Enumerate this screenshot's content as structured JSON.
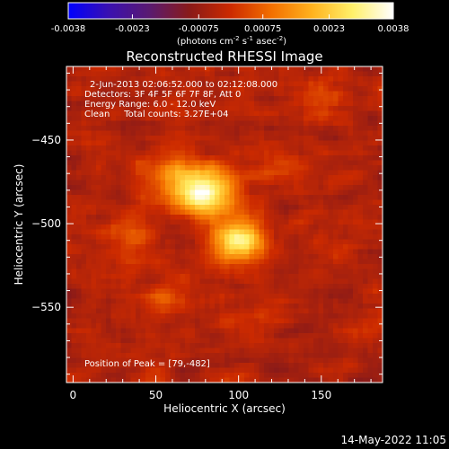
{
  "chart_data": {
    "type": "heatmap",
    "title": "Reconstructed RHESSI Image",
    "xlabel": "Heliocentric X (arcsec)",
    "ylabel": "Heliocentric Y (arcsec)",
    "xlim": [
      -4,
      187
    ],
    "ylim": [
      -595,
      -406
    ],
    "xticks": [
      0,
      50,
      100,
      150
    ],
    "yticks": [
      -450,
      -500,
      -550
    ],
    "annotations": [
      "2-Jun-2013 02:06:52.000 to 02:12:08.000",
      "Detectors: 3F 4F 5F 6F 7F 8F, Att 0",
      "Energy Range: 6.0 - 12.0 keV",
      "Clean     Total counts: 3.27E+04"
    ],
    "peak_text": "Position of Peak = [79,-482]",
    "peak_position": [
      79,
      -482
    ],
    "colorbar": {
      "range": [
        -0.0038,
        0.0038
      ],
      "ticks": [
        "-0.0038",
        "-0.0023",
        "-0.00075",
        "0.00075",
        "0.0023",
        "0.0038"
      ],
      "units_label": "(photons cm-2 s-1 asec-2)",
      "colormap": [
        "#0000ff",
        "#3a10b0",
        "#5a1a70",
        "#8a1a18",
        "#cc2a00",
        "#f36f00",
        "#ffb21e",
        "#fff06a",
        "#ffffff"
      ]
    },
    "sources": [
      {
        "x": 80,
        "y": -482,
        "amplitude": 0.0038,
        "sigma_x": 13,
        "sigma_y": 10
      },
      {
        "x": 100,
        "y": -510,
        "amplitude": 0.0033,
        "sigma_x": 11,
        "sigma_y": 9
      },
      {
        "x": 60,
        "y": -470,
        "amplitude": 0.0016,
        "sigma_x": 12,
        "sigma_y": 9
      },
      {
        "x": 38,
        "y": -505,
        "amplitude": 0.001,
        "sigma_x": 8,
        "sigma_y": 8
      },
      {
        "x": 125,
        "y": -465,
        "amplitude": 0.0009,
        "sigma_x": 10,
        "sigma_y": 7
      },
      {
        "x": 150,
        "y": -425,
        "amplitude": 0.0008,
        "sigma_x": 12,
        "sigma_y": 7
      },
      {
        "x": 55,
        "y": -545,
        "amplitude": 0.0008,
        "sigma_x": 12,
        "sigma_y": 6
      },
      {
        "x": 110,
        "y": -555,
        "amplitude": 0.0007,
        "sigma_x": 10,
        "sigma_y": 6
      }
    ],
    "background_level": -0.0004
  },
  "footer": {
    "timestamp": "14-May-2022 11:05"
  }
}
